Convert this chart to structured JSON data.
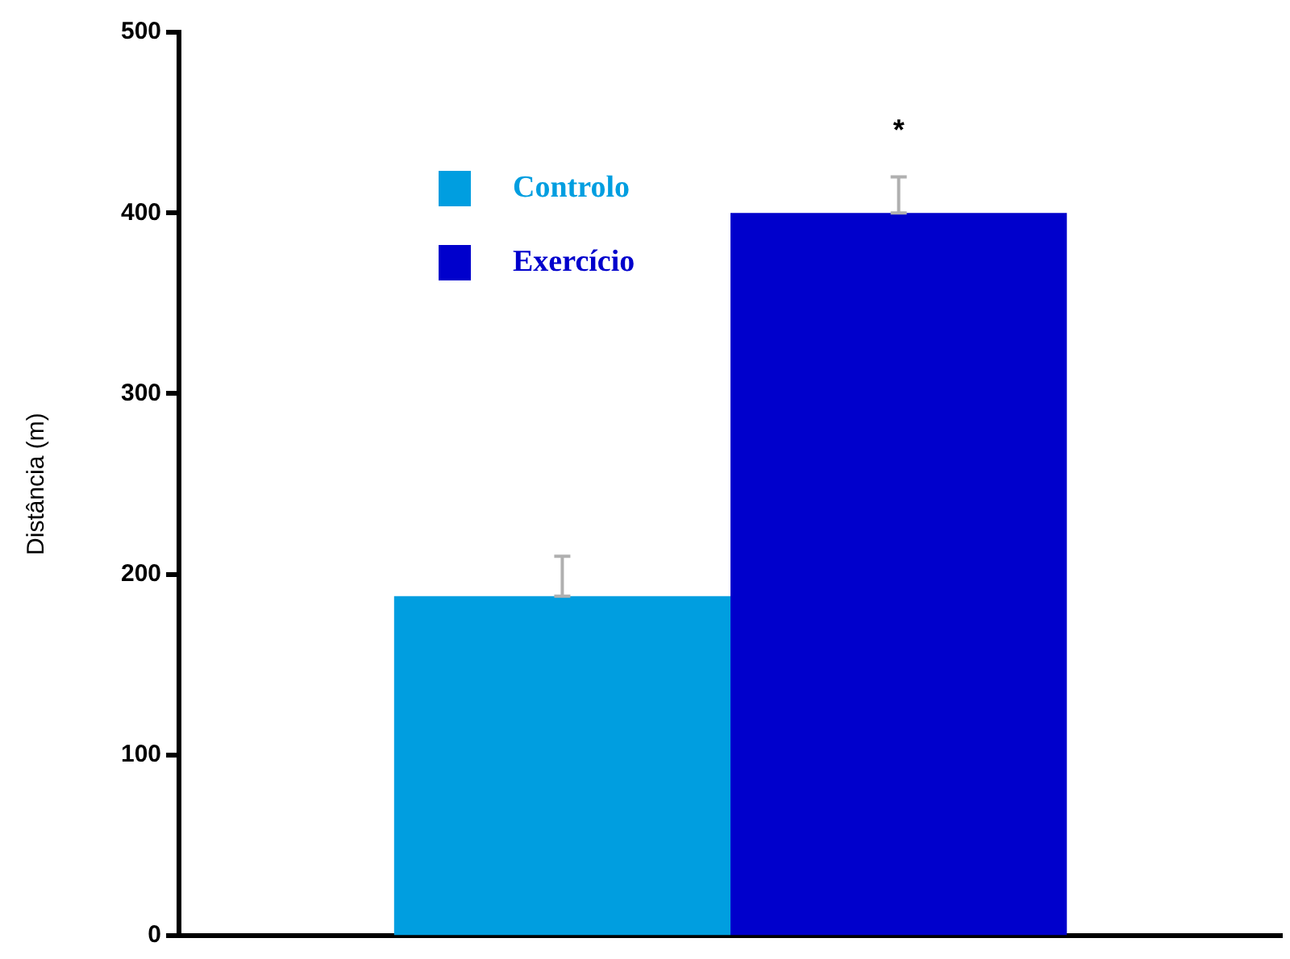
{
  "chart_data": {
    "type": "bar",
    "ylabel": "Distância (m)",
    "categories": [
      null
    ],
    "series": [
      {
        "name": "Controlo",
        "color": "#009ee0",
        "values": [
          188
        ],
        "errors": [
          [
            188,
            210
          ]
        ]
      },
      {
        "name": "Exercício",
        "color": "#0000cc",
        "values": [
          400
        ],
        "errors": [
          [
            400,
            420
          ]
        ]
      }
    ],
    "ylim": [
      0,
      500
    ],
    "yticks": [
      0,
      100,
      200,
      300,
      400,
      500
    ],
    "grid": false,
    "legend": "top left",
    "annotations": [
      "*"
    ]
  }
}
